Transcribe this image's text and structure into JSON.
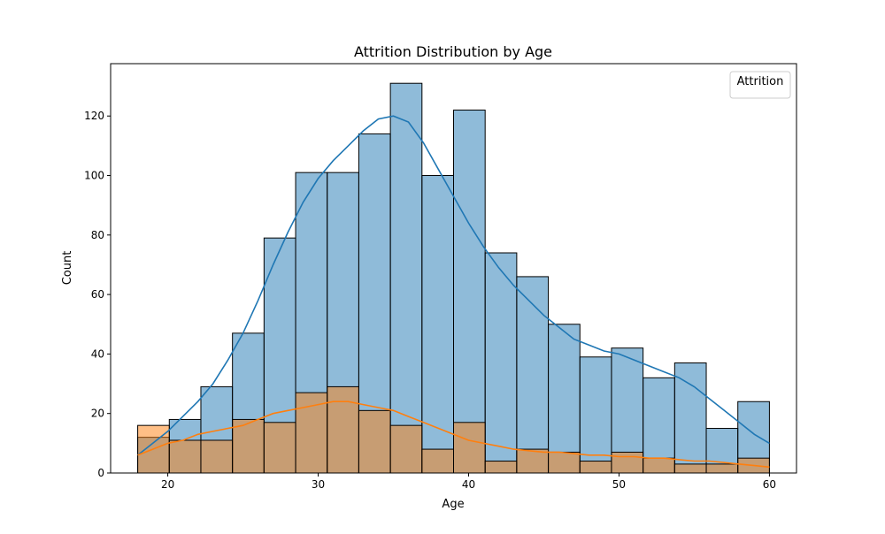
{
  "chart_data": {
    "type": "histogram",
    "title": "Attrition Distribution by Age",
    "xlabel": "Age",
    "ylabel": "Count",
    "xlim": [
      16.2,
      61.8
    ],
    "ylim": [
      0,
      137.6
    ],
    "xticks": [
      20,
      30,
      40,
      50,
      60
    ],
    "yticks": [
      0,
      20,
      40,
      60,
      80,
      100,
      120
    ],
    "bin_edges": [
      18,
      20.1,
      22.2,
      24.3,
      26.4,
      28.5,
      30.6,
      32.7,
      34.8,
      36.9,
      39,
      41.1,
      43.2,
      45.3,
      47.4,
      49.5,
      51.6,
      53.7,
      55.8,
      57.9,
      60
    ],
    "legend": {
      "title": "Attrition",
      "position": "top-right",
      "entries": []
    },
    "grid": false,
    "series": [
      {
        "color": "#1f77b4",
        "values": [
          12,
          18,
          29,
          47,
          79,
          101,
          101,
          114,
          131,
          100,
          122,
          74,
          66,
          50,
          39,
          42,
          32,
          37,
          15,
          24
        ],
        "kde_x": [
          18,
          19,
          20,
          21,
          22,
          23,
          24,
          25,
          26,
          27,
          28,
          29,
          30,
          31,
          32,
          33,
          34,
          35,
          36,
          37,
          38,
          39,
          40,
          41,
          42,
          43,
          44,
          45,
          46,
          47,
          48,
          49,
          50,
          51,
          52,
          53,
          54,
          55,
          56,
          57,
          58,
          59,
          60
        ],
        "kde_y": [
          6,
          10,
          14,
          19,
          24,
          30,
          38,
          47,
          58,
          70,
          81,
          91,
          99,
          105,
          110,
          115,
          119,
          120,
          118,
          111,
          102,
          93,
          84,
          76,
          69,
          63,
          58,
          53,
          49,
          45,
          43,
          41,
          40,
          38,
          36,
          34,
          32,
          29,
          25,
          21,
          17,
          13,
          10
        ]
      },
      {
        "color": "#ff7f0e",
        "values": [
          16,
          11,
          11,
          18,
          17,
          27,
          29,
          21,
          16,
          8,
          17,
          4,
          8,
          7,
          4,
          7,
          5,
          3,
          3,
          5
        ],
        "kde_x": [
          18,
          19,
          20,
          21,
          22,
          23,
          24,
          25,
          26,
          27,
          28,
          29,
          30,
          31,
          32,
          33,
          34,
          35,
          36,
          37,
          38,
          39,
          40,
          41,
          42,
          43,
          44,
          45,
          46,
          47,
          48,
          49,
          50,
          51,
          52,
          53,
          54,
          55,
          56,
          57,
          58,
          59,
          60
        ],
        "kde_y": [
          6,
          8,
          10,
          11,
          13,
          14,
          15,
          16,
          18,
          20,
          21,
          22,
          23,
          24,
          24,
          23,
          22,
          21,
          19,
          17,
          15,
          13,
          11,
          10,
          9,
          8,
          7.5,
          7,
          7,
          6.5,
          6,
          6,
          5.5,
          5.5,
          5,
          5,
          4.5,
          4,
          4,
          3.5,
          3,
          2.5,
          2
        ]
      }
    ]
  }
}
